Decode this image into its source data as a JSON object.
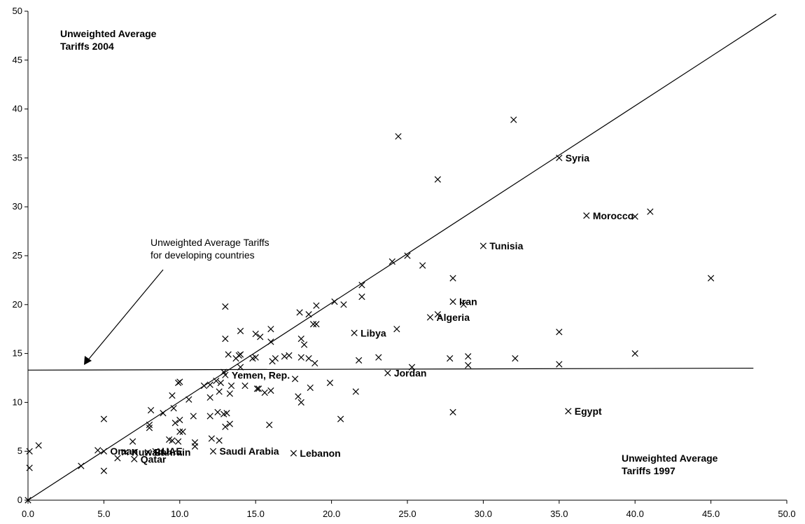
{
  "chart_data": {
    "type": "scatter",
    "xlim": [
      0,
      50
    ],
    "ylim": [
      0,
      50
    ],
    "x_ticks": [
      0,
      5,
      10,
      15,
      20,
      25,
      30,
      35,
      40,
      45,
      50
    ],
    "y_ticks": [
      0,
      5,
      10,
      15,
      20,
      25,
      30,
      35,
      40,
      45,
      50
    ],
    "x_tick_labels": [
      "0.0",
      "5.0",
      "10.0",
      "15.0",
      "20.0",
      "25.0",
      "30.0",
      "35.0",
      "40.0",
      "45.0",
      "50.0"
    ],
    "y_tick_labels": [
      "0",
      "5",
      "10",
      "15",
      "20",
      "25",
      "30",
      "35",
      "40",
      "45",
      "50"
    ],
    "grid": false,
    "annotations": {
      "y_axis_title_line1": "Unweighted Average",
      "y_axis_title_line2": "Tariffs 2004",
      "x_axis_title_line1": "Unweighted Average",
      "x_axis_title_line2": "Tariffs 1997",
      "developing_line1": "Unweighted Average Tariffs",
      "developing_line2": "for developing countries"
    },
    "lines": [
      {
        "name": "diagonal",
        "x": [
          0,
          49.3
        ],
        "y": [
          0,
          49.7
        ]
      },
      {
        "name": "developing-average",
        "x": [
          0,
          47.8
        ],
        "y": [
          13.3,
          13.5
        ]
      }
    ],
    "labeled_points": [
      {
        "label": "Syria",
        "x": 35.0,
        "y": 35.0
      },
      {
        "label": "Morocco",
        "x": 36.8,
        "y": 29.1
      },
      {
        "label": "Tunisia",
        "x": 30.0,
        "y": 26.0
      },
      {
        "label": "Iran",
        "x": 28.0,
        "y": 20.3
      },
      {
        "label": "Algeria",
        "x": 26.5,
        "y": 18.7
      },
      {
        "label": "Libya",
        "x": 21.5,
        "y": 17.1
      },
      {
        "label": "Jordan",
        "x": 23.7,
        "y": 13.0
      },
      {
        "label": "Yemen, Rep.",
        "x": 13.0,
        "y": 12.8
      },
      {
        "label": "Egypt",
        "x": 35.6,
        "y": 9.1
      },
      {
        "label": "Lebanon",
        "x": 17.5,
        "y": 4.8
      },
      {
        "label": "Saudi Arabia",
        "x": 12.2,
        "y": 5.0
      },
      {
        "label": "Oman",
        "x": 5.0,
        "y": 5.0
      },
      {
        "label": "Kuwait",
        "x": 6.4,
        "y": 4.9
      },
      {
        "label": "Bahrain",
        "x": 7.9,
        "y": 4.9
      },
      {
        "label": "UAE",
        "x": 8.4,
        "y": 5.0
      },
      {
        "label": "Qatar",
        "x": 7.0,
        "y": 4.2
      }
    ],
    "points": [
      {
        "x": 0,
        "y": 0
      },
      {
        "x": 0.1,
        "y": 5.0
      },
      {
        "x": 0.1,
        "y": 3.3
      },
      {
        "x": 0.7,
        "y": 5.6
      },
      {
        "x": 3.5,
        "y": 3.5
      },
      {
        "x": 4.6,
        "y": 5.1
      },
      {
        "x": 5.0,
        "y": 8.3
      },
      {
        "x": 5.0,
        "y": 3.0
      },
      {
        "x": 5.9,
        "y": 4.3
      },
      {
        "x": 6.9,
        "y": 6.0
      },
      {
        "x": 8.0,
        "y": 7.7
      },
      {
        "x": 8.0,
        "y": 7.4
      },
      {
        "x": 8.1,
        "y": 9.2
      },
      {
        "x": 8.9,
        "y": 8.9
      },
      {
        "x": 9.3,
        "y": 6.2
      },
      {
        "x": 9.5,
        "y": 6.1
      },
      {
        "x": 9.5,
        "y": 10.7
      },
      {
        "x": 9.6,
        "y": 9.4
      },
      {
        "x": 9.7,
        "y": 7.9
      },
      {
        "x": 9.9,
        "y": 12.0
      },
      {
        "x": 9.9,
        "y": 6.0
      },
      {
        "x": 10.0,
        "y": 12.1
      },
      {
        "x": 10.0,
        "y": 8.2
      },
      {
        "x": 10.0,
        "y": 7.0
      },
      {
        "x": 10.2,
        "y": 7.0
      },
      {
        "x": 10.6,
        "y": 10.3
      },
      {
        "x": 10.9,
        "y": 8.6
      },
      {
        "x": 11.0,
        "y": 5.9
      },
      {
        "x": 11.0,
        "y": 5.5
      },
      {
        "x": 11.6,
        "y": 11.7
      },
      {
        "x": 12.0,
        "y": 11.8
      },
      {
        "x": 12.0,
        "y": 10.5
      },
      {
        "x": 12.0,
        "y": 8.6
      },
      {
        "x": 12.1,
        "y": 6.3
      },
      {
        "x": 12.4,
        "y": 12.2
      },
      {
        "x": 12.5,
        "y": 9.0
      },
      {
        "x": 12.6,
        "y": 6.1
      },
      {
        "x": 12.6,
        "y": 11.1
      },
      {
        "x": 12.7,
        "y": 12.0
      },
      {
        "x": 12.9,
        "y": 8.8
      },
      {
        "x": 12.9,
        "y": 13.1
      },
      {
        "x": 13.0,
        "y": 19.8
      },
      {
        "x": 13.0,
        "y": 16.5
      },
      {
        "x": 13.0,
        "y": 7.5
      },
      {
        "x": 13.1,
        "y": 8.9
      },
      {
        "x": 13.2,
        "y": 14.9
      },
      {
        "x": 13.3,
        "y": 10.9
      },
      {
        "x": 13.3,
        "y": 7.8
      },
      {
        "x": 13.4,
        "y": 11.7
      },
      {
        "x": 13.7,
        "y": 14.5
      },
      {
        "x": 13.9,
        "y": 14.8
      },
      {
        "x": 14.0,
        "y": 17.3
      },
      {
        "x": 14.0,
        "y": 14.9
      },
      {
        "x": 14.0,
        "y": 13.6
      },
      {
        "x": 14.3,
        "y": 11.7
      },
      {
        "x": 14.8,
        "y": 14.5
      },
      {
        "x": 15.0,
        "y": 17.0
      },
      {
        "x": 15.0,
        "y": 14.6
      },
      {
        "x": 15.1,
        "y": 11.4
      },
      {
        "x": 15.2,
        "y": 11.4
      },
      {
        "x": 15.3,
        "y": 16.7
      },
      {
        "x": 15.6,
        "y": 11.0
      },
      {
        "x": 15.9,
        "y": 7.7
      },
      {
        "x": 16.0,
        "y": 17.5
      },
      {
        "x": 16.0,
        "y": 16.2
      },
      {
        "x": 16.0,
        "y": 11.2
      },
      {
        "x": 16.1,
        "y": 14.2
      },
      {
        "x": 16.3,
        "y": 14.5
      },
      {
        "x": 16.9,
        "y": 14.7
      },
      {
        "x": 17.2,
        "y": 14.8
      },
      {
        "x": 17.6,
        "y": 12.4
      },
      {
        "x": 17.8,
        "y": 10.6
      },
      {
        "x": 17.9,
        "y": 19.2
      },
      {
        "x": 18.0,
        "y": 16.5
      },
      {
        "x": 18.0,
        "y": 14.6
      },
      {
        "x": 18.0,
        "y": 10.0
      },
      {
        "x": 18.2,
        "y": 15.9
      },
      {
        "x": 18.5,
        "y": 14.5
      },
      {
        "x": 18.5,
        "y": 19.0
      },
      {
        "x": 18.6,
        "y": 11.5
      },
      {
        "x": 18.8,
        "y": 18.0
      },
      {
        "x": 18.9,
        "y": 14.0
      },
      {
        "x": 19.0,
        "y": 19.9
      },
      {
        "x": 19.0,
        "y": 18.0
      },
      {
        "x": 19.9,
        "y": 12.0
      },
      {
        "x": 20.2,
        "y": 20.3
      },
      {
        "x": 20.6,
        "y": 8.3
      },
      {
        "x": 20.8,
        "y": 20.0
      },
      {
        "x": 21.6,
        "y": 11.1
      },
      {
        "x": 21.8,
        "y": 14.3
      },
      {
        "x": 22.0,
        "y": 22.0
      },
      {
        "x": 22.0,
        "y": 20.8
      },
      {
        "x": 23.1,
        "y": 14.6
      },
      {
        "x": 24.0,
        "y": 24.4
      },
      {
        "x": 24.3,
        "y": 17.5
      },
      {
        "x": 24.4,
        "y": 37.2
      },
      {
        "x": 25.0,
        "y": 25.0
      },
      {
        "x": 25.3,
        "y": 13.6
      },
      {
        "x": 26.0,
        "y": 24.0
      },
      {
        "x": 27.0,
        "y": 32.8
      },
      {
        "x": 27.0,
        "y": 19.0
      },
      {
        "x": 27.8,
        "y": 14.5
      },
      {
        "x": 28.0,
        "y": 22.7
      },
      {
        "x": 28.0,
        "y": 9.0
      },
      {
        "x": 28.7,
        "y": 20.0
      },
      {
        "x": 29.0,
        "y": 14.7
      },
      {
        "x": 29.0,
        "y": 13.8
      },
      {
        "x": 32.0,
        "y": 38.9
      },
      {
        "x": 32.1,
        "y": 14.5
      },
      {
        "x": 35.0,
        "y": 17.2
      },
      {
        "x": 35.0,
        "y": 13.9
      },
      {
        "x": 40.0,
        "y": 29.0
      },
      {
        "x": 40.0,
        "y": 15.0
      },
      {
        "x": 41.0,
        "y": 29.5
      },
      {
        "x": 45.0,
        "y": 22.7
      }
    ]
  }
}
